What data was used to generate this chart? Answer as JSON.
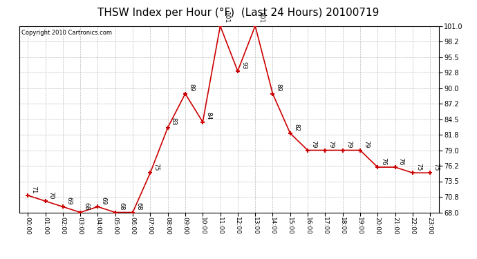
{
  "title": "THSW Index per Hour (°F)  (Last 24 Hours) 20100719",
  "copyright": "Copyright 2010 Cartronics.com",
  "hours": [
    "00:00",
    "01:00",
    "02:00",
    "03:00",
    "04:00",
    "05:00",
    "06:00",
    "07:00",
    "08:00",
    "09:00",
    "10:00",
    "11:00",
    "12:00",
    "13:00",
    "14:00",
    "15:00",
    "16:00",
    "17:00",
    "18:00",
    "19:00",
    "20:00",
    "21:00",
    "22:00",
    "23:00"
  ],
  "values": [
    71,
    70,
    69,
    68,
    69,
    68,
    68,
    75,
    83,
    89,
    84,
    101,
    93,
    101,
    89,
    82,
    79,
    79,
    79,
    79,
    76,
    76,
    75,
    75
  ],
  "ylim": [
    68.0,
    101.0
  ],
  "yticks": [
    68.0,
    70.8,
    73.5,
    76.2,
    79.0,
    81.8,
    84.5,
    87.2,
    90.0,
    92.8,
    95.5,
    98.2,
    101.0
  ],
  "line_color": "#cc0000",
  "marker_color": "#cc0000",
  "bg_color": "#ffffff",
  "grid_color": "#bbbbbb",
  "title_fontsize": 11,
  "annotation_fontsize": 6.5,
  "copyright_fontsize": 6,
  "tick_fontsize": 6.5,
  "ytick_fontsize": 7
}
